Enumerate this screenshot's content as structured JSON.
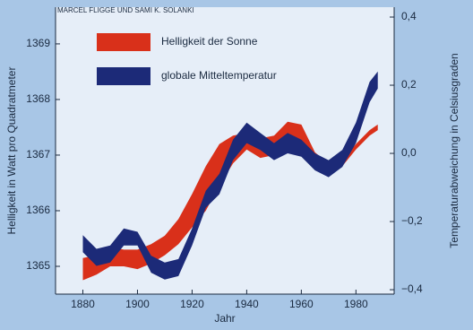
{
  "chart_data": {
    "type": "band",
    "credit": "MARCEL FLIGGE UND SAMI K. SOLANKI",
    "xlabel": "Jahr",
    "ylabel": "Helligkeit in Watt pro Quadratmeter",
    "y2label": "Temperaturabweichung in Celsiusgraden",
    "x": [
      1880,
      1885,
      1890,
      1895,
      1900,
      1905,
      1910,
      1915,
      1920,
      1925,
      1930,
      1935,
      1940,
      1945,
      1950,
      1955,
      1960,
      1965,
      1970,
      1975,
      1980,
      1985,
      1988
    ],
    "xlim": [
      1870,
      1994
    ],
    "xticks": [
      1880,
      1900,
      1920,
      1940,
      1960,
      1980
    ],
    "ylim": [
      1364.5,
      1369.66
    ],
    "yticks": [
      1365,
      1366,
      1367,
      1368,
      1369
    ],
    "y2lim": [
      -0.413,
      0.429
    ],
    "y2ticks": [
      {
        "value": 0.4,
        "label": "0,4"
      },
      {
        "value": 0.2,
        "label": "0,2"
      },
      {
        "value": 0,
        "label": "0,0"
      },
      {
        "value": -0.2,
        "label": "−0,2"
      },
      {
        "value": -0.4,
        "label": "−0,4"
      }
    ],
    "series": [
      {
        "name": "Helligkeit der Sonne",
        "color": "#d9301a",
        "axis": "y",
        "low": [
          1364.75,
          1364.85,
          1365.0,
          1365.0,
          1364.95,
          1365.05,
          1365.2,
          1365.4,
          1365.7,
          1366.0,
          1366.45,
          1366.85,
          1367.1,
          1366.95,
          1367.0,
          1367.3,
          1367.25,
          1366.85,
          1366.7,
          1366.8,
          1367.1,
          1367.35,
          1367.45
        ],
        "high": [
          1365.15,
          1365.2,
          1365.35,
          1365.3,
          1365.3,
          1365.4,
          1365.55,
          1365.85,
          1366.3,
          1366.8,
          1367.2,
          1367.35,
          1367.4,
          1367.3,
          1367.35,
          1367.6,
          1367.55,
          1367.05,
          1366.85,
          1366.9,
          1367.2,
          1367.45,
          1367.55
        ]
      },
      {
        "name": "globale Mitteltemperatur",
        "color": "#1c2a78",
        "axis": "y2",
        "low": [
          -0.29,
          -0.33,
          -0.32,
          -0.27,
          -0.27,
          -0.35,
          -0.37,
          -0.36,
          -0.27,
          -0.16,
          -0.12,
          -0.02,
          0.03,
          0.01,
          -0.02,
          0.0,
          -0.01,
          -0.05,
          -0.07,
          -0.04,
          0.03,
          0.15,
          0.19
        ],
        "high": [
          -0.24,
          -0.28,
          -0.27,
          -0.22,
          -0.23,
          -0.3,
          -0.32,
          -0.31,
          -0.22,
          -0.11,
          -0.06,
          0.04,
          0.09,
          0.06,
          0.03,
          0.06,
          0.04,
          0.0,
          -0.02,
          0.01,
          0.09,
          0.21,
          0.24
        ]
      }
    ]
  }
}
